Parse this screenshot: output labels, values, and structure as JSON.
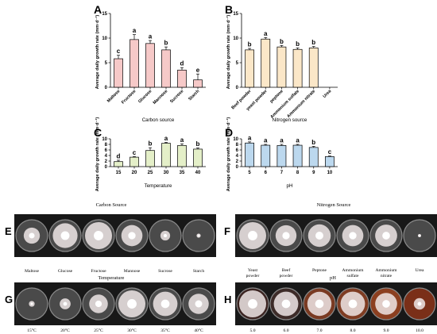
{
  "chart_data": [
    {
      "panel": "A",
      "type": "bar",
      "categories": [
        "Maltose",
        "Fructose",
        "Glucose",
        "Mannose",
        "Sucrose",
        "Starch"
      ],
      "values": [
        5.8,
        9.7,
        8.9,
        7.6,
        3.5,
        1.5
      ],
      "errors": [
        0.7,
        1.0,
        0.6,
        0.6,
        0.5,
        1.2
      ],
      "letters": [
        "c",
        "a",
        "a",
        "b",
        "d",
        "e"
      ],
      "xlabel": "Carbon source",
      "ylabel": "Average daily growth rate (mm·d⁻¹)",
      "ylim": [
        0,
        15
      ],
      "yticks": [
        0,
        5,
        10,
        15
      ],
      "color": "#f6c9c8"
    },
    {
      "panel": "B",
      "type": "bar",
      "categories": [
        "Beef powder",
        "yeast powder",
        "peptone",
        "Ammonium sulfate",
        "Ammonium nitrate",
        "Urea"
      ],
      "values": [
        7.6,
        9.8,
        8.2,
        7.7,
        8.0,
        0
      ],
      "errors": [
        0.3,
        0.3,
        0.3,
        0.3,
        0.3,
        0
      ],
      "letters": [
        "b",
        "a",
        "b",
        "b",
        "b",
        ""
      ],
      "xlabel": "Nitrogen source",
      "ylabel": "Average daily growth rate (mm·d⁻¹)",
      "ylim": [
        0,
        15
      ],
      "yticks": [
        0,
        5,
        10,
        15
      ],
      "color": "#fbe7c8"
    },
    {
      "panel": "C",
      "type": "bar",
      "categories": [
        "15",
        "20",
        "25",
        "30",
        "35",
        "40"
      ],
      "values": [
        1.8,
        3.4,
        5.8,
        8.4,
        7.6,
        6.3
      ],
      "errors": [
        0.5,
        0.2,
        1.0,
        0.3,
        0.6,
        0.4
      ],
      "letters": [
        "d",
        "c",
        "b",
        "a",
        "a",
        "b"
      ],
      "xlabel": "Temperature",
      "ylabel": "Average daily growth rate (mm·d⁻¹)",
      "ylim": [
        0,
        10
      ],
      "yticks": [
        0,
        2,
        4,
        6,
        8,
        10
      ],
      "color": "#e4efc8"
    },
    {
      "panel": "D",
      "type": "bar",
      "categories": [
        "5",
        "6",
        "7",
        "8",
        "9",
        "10"
      ],
      "values": [
        8.5,
        7.7,
        7.6,
        7.7,
        6.9,
        3.6
      ],
      "errors": [
        0.4,
        0.3,
        0.4,
        0.3,
        0.4,
        0.2
      ],
      "letters": [
        "a",
        "a",
        "a",
        "a",
        "b",
        "c"
      ],
      "xlabel": "pH",
      "ylabel": "Average daily growth rate (mm·d⁻¹)",
      "ylim": [
        0,
        10
      ],
      "yticks": [
        0,
        2,
        4,
        6,
        8,
        10
      ],
      "color": "#bcd8ee"
    }
  ],
  "photo_panels": {
    "E": {
      "title": "Carbon Source",
      "labels": [
        "Maltose",
        "Glucose",
        "Fructose",
        "Mannose",
        "Sucrose",
        "Starch"
      ]
    },
    "F": {
      "title": "Nitrogen Source",
      "labels": [
        "Yeast powder",
        "Beef powder",
        "Peptone",
        "Ammonium sulfate",
        "Ammonium nitrate",
        "Urea"
      ]
    },
    "G": {
      "title": "Temperature",
      "labels": [
        "15°C",
        "20°C",
        "25°C",
        "30°C",
        "35°C",
        "40°C"
      ]
    },
    "H": {
      "title": "pH",
      "labels": [
        "5.0",
        "6.0",
        "7.0",
        "8.0",
        "9.0",
        "10.0"
      ]
    }
  }
}
